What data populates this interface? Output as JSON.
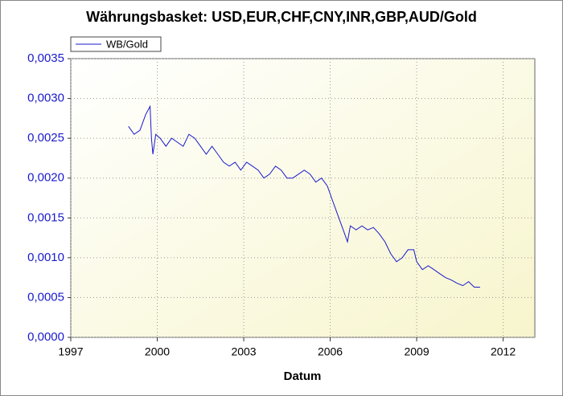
{
  "chart_data": {
    "type": "line",
    "title": "Währungsbasket: USD,EUR,CHF,CNY,INR,GBP,AUD/Gold",
    "x_label": "Datum",
    "x": [
      1999.0,
      1999.2,
      1999.4,
      1999.5,
      1999.6,
      1999.75,
      1999.8,
      1999.85,
      1999.95,
      2000.1,
      2000.3,
      2000.5,
      2000.7,
      2000.9,
      2001.1,
      2001.3,
      2001.5,
      2001.7,
      2001.9,
      2002.1,
      2002.3,
      2002.5,
      2002.7,
      2002.9,
      2003.1,
      2003.3,
      2003.5,
      2003.7,
      2003.9,
      2004.1,
      2004.3,
      2004.5,
      2004.7,
      2004.9,
      2005.1,
      2005.3,
      2005.5,
      2005.7,
      2005.9,
      2006.1,
      2006.3,
      2006.5,
      2006.6,
      2006.7,
      2006.9,
      2007.1,
      2007.3,
      2007.5,
      2007.7,
      2007.9,
      2008.1,
      2008.3,
      2008.5,
      2008.7,
      2008.9,
      2009.0,
      2009.2,
      2009.4,
      2009.6,
      2009.8,
      2010.0,
      2010.2,
      2010.4,
      2010.6,
      2010.8,
      2011.0,
      2011.2
    ],
    "series": [
      {
        "name": "WB/Gold",
        "color": "#1a1acc",
        "values": [
          0.00265,
          0.00255,
          0.0026,
          0.0027,
          0.0028,
          0.0029,
          0.0025,
          0.0023,
          0.00255,
          0.0025,
          0.0024,
          0.0025,
          0.00245,
          0.0024,
          0.00255,
          0.0025,
          0.0024,
          0.0023,
          0.0024,
          0.0023,
          0.0022,
          0.00215,
          0.0022,
          0.0021,
          0.0022,
          0.00215,
          0.0021,
          0.002,
          0.00205,
          0.00215,
          0.0021,
          0.002,
          0.002,
          0.00205,
          0.0021,
          0.00205,
          0.00195,
          0.002,
          0.0019,
          0.0017,
          0.0015,
          0.0013,
          0.0012,
          0.0014,
          0.00135,
          0.0014,
          0.00135,
          0.00138,
          0.0013,
          0.0012,
          0.00105,
          0.00095,
          0.001,
          0.0011,
          0.0011,
          0.00095,
          0.00085,
          0.0009,
          0.00085,
          0.0008,
          0.00075,
          0.00072,
          0.00068,
          0.00065,
          0.0007,
          0.00063,
          0.00063
        ]
      }
    ],
    "xlim": [
      1997,
      2013.1
    ],
    "xticks": [
      1997,
      2000,
      2003,
      2006,
      2009,
      2012
    ],
    "ylim": [
      0,
      0.0035
    ],
    "yticks": [
      {
        "value": 0,
        "label": "0,0000"
      },
      {
        "value": 0.0005,
        "label": "0,0005"
      },
      {
        "value": 0.001,
        "label": "0,0010"
      },
      {
        "value": 0.0015,
        "label": "0,0015"
      },
      {
        "value": 0.002,
        "label": "0,0020"
      },
      {
        "value": 0.0025,
        "label": "0,0025"
      },
      {
        "value": 0.003,
        "label": "0,0030"
      },
      {
        "value": 0.0035,
        "label": "0,0035"
      }
    ],
    "grid": true,
    "legend": "top-left"
  }
}
